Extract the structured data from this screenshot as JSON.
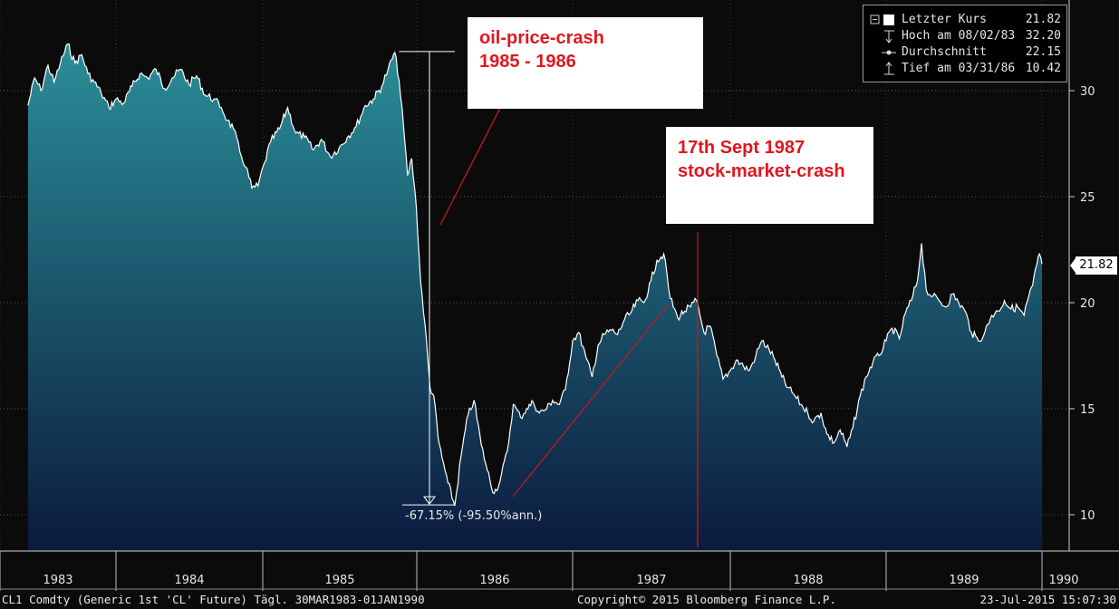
{
  "chart_data": {
    "type": "area",
    "ticker": "CL1 Comdty (Generic 1st 'CL' Future)",
    "x_tick_labels": [
      "1983",
      "1984",
      "1985",
      "1986",
      "1987",
      "1988",
      "1989",
      "1990"
    ],
    "y_ticks": [
      10,
      15,
      20,
      25,
      30
    ],
    "ylim": [
      8.5,
      32.5
    ],
    "x_range": [
      "1983-03-30",
      "1990-01-01"
    ],
    "grid": true,
    "legend_position": "top-right",
    "legend": [
      {
        "label": "Letzter Kurs",
        "value": "21.82",
        "symbol": "square"
      },
      {
        "label": "Hoch am 08/02/83",
        "value": "32.20",
        "symbol": "high"
      },
      {
        "label": "Durchschnitt",
        "value": "22.15",
        "symbol": "avg"
      },
      {
        "label": "Tief am 03/31/86",
        "value": "10.42",
        "symbol": "low"
      }
    ],
    "last_value_label": "21.82",
    "drawdown_label": "-67.15% (-95.50%ann.)",
    "annotations": [
      {
        "lines": [
          "oil-price-crash",
          "1985 - 1986"
        ]
      },
      {
        "lines": [
          "17th Sept 1987",
          "stock-market-crash"
        ]
      }
    ],
    "series": [
      {
        "points": [
          [
            "1983-03-30",
            29.3
          ],
          [
            "1983-04-20",
            30.6
          ],
          [
            "1983-05-10",
            30.0
          ],
          [
            "1983-06-01",
            31.2
          ],
          [
            "1983-06-20",
            30.4
          ],
          [
            "1983-07-10",
            31.3
          ],
          [
            "1983-08-02",
            32.2
          ],
          [
            "1983-08-25",
            31.3
          ],
          [
            "1983-09-15",
            31.7
          ],
          [
            "1983-10-05",
            30.8
          ],
          [
            "1983-10-25",
            30.4
          ],
          [
            "1983-11-15",
            29.9
          ],
          [
            "1983-12-10",
            29.2
          ],
          [
            "1984-01-01",
            29.6
          ],
          [
            "1984-01-20",
            29.4
          ],
          [
            "1984-02-10",
            30.2
          ],
          [
            "1984-03-01",
            30.8
          ],
          [
            "1984-03-20",
            30.6
          ],
          [
            "1984-04-10",
            31.0
          ],
          [
            "1984-05-01",
            30.1
          ],
          [
            "1984-05-20",
            30.6
          ],
          [
            "1984-06-10",
            31.0
          ],
          [
            "1984-07-01",
            30.3
          ],
          [
            "1984-07-20",
            30.7
          ],
          [
            "1984-08-10",
            29.8
          ],
          [
            "1984-09-01",
            29.6
          ],
          [
            "1984-09-20",
            29.2
          ],
          [
            "1984-10-05",
            28.6
          ],
          [
            "1984-10-20",
            28.2
          ],
          [
            "1984-11-05",
            27.1
          ],
          [
            "1984-11-20",
            26.4
          ],
          [
            "1984-12-05",
            25.4
          ],
          [
            "1984-12-20",
            25.5
          ],
          [
            "1985-01-05",
            26.6
          ],
          [
            "1985-01-20",
            27.6
          ],
          [
            "1985-02-10",
            28.2
          ],
          [
            "1985-03-01",
            29.2
          ],
          [
            "1985-03-20",
            28.0
          ],
          [
            "1985-04-10",
            27.8
          ],
          [
            "1985-05-01",
            27.2
          ],
          [
            "1985-05-20",
            27.7
          ],
          [
            "1985-06-10",
            26.9
          ],
          [
            "1985-07-01",
            27.3
          ],
          [
            "1985-07-20",
            27.8
          ],
          [
            "1985-08-10",
            28.3
          ],
          [
            "1985-09-01",
            29.3
          ],
          [
            "1985-09-20",
            29.6
          ],
          [
            "1985-10-10",
            30.2
          ],
          [
            "1985-10-25",
            31.0
          ],
          [
            "1985-11-10",
            31.8
          ],
          [
            "1985-11-20",
            30.5
          ],
          [
            "1985-12-01",
            28.2
          ],
          [
            "1985-12-10",
            26.0
          ],
          [
            "1985-12-20",
            26.8
          ],
          [
            "1985-12-31",
            24.5
          ],
          [
            "1986-01-10",
            21.0
          ],
          [
            "1986-01-20",
            19.0
          ],
          [
            "1986-02-01",
            16.0
          ],
          [
            "1986-02-10",
            15.6
          ],
          [
            "1986-02-20",
            13.6
          ],
          [
            "1986-03-01",
            12.7
          ],
          [
            "1986-03-15",
            11.5
          ],
          [
            "1986-03-31",
            10.42
          ],
          [
            "1986-04-15",
            12.8
          ],
          [
            "1986-05-01",
            14.7
          ],
          [
            "1986-05-15",
            15.4
          ],
          [
            "1986-06-01",
            13.3
          ],
          [
            "1986-06-15",
            12.1
          ],
          [
            "1986-07-01",
            11.0
          ],
          [
            "1986-07-15",
            11.6
          ],
          [
            "1986-08-01",
            13.0
          ],
          [
            "1986-08-15",
            15.2
          ],
          [
            "1986-09-01",
            14.6
          ],
          [
            "1986-09-15",
            15.0
          ],
          [
            "1986-10-01",
            15.3
          ],
          [
            "1986-10-15",
            14.8
          ],
          [
            "1986-11-01",
            15.0
          ],
          [
            "1986-11-15",
            15.4
          ],
          [
            "1986-12-01",
            15.2
          ],
          [
            "1986-12-15",
            15.9
          ],
          [
            "1987-01-01",
            18.2
          ],
          [
            "1987-01-15",
            18.6
          ],
          [
            "1987-02-01",
            17.4
          ],
          [
            "1987-02-15",
            16.5
          ],
          [
            "1987-03-01",
            18.0
          ],
          [
            "1987-03-15",
            18.5
          ],
          [
            "1987-04-01",
            18.7
          ],
          [
            "1987-04-15",
            18.5
          ],
          [
            "1987-05-01",
            19.2
          ],
          [
            "1987-05-15",
            19.5
          ],
          [
            "1987-06-01",
            20.1
          ],
          [
            "1987-06-15",
            20.0
          ],
          [
            "1987-07-01",
            21.0
          ],
          [
            "1987-07-15",
            22.0
          ],
          [
            "1987-07-31",
            22.3
          ],
          [
            "1987-08-15",
            20.2
          ],
          [
            "1987-09-01",
            19.3
          ],
          [
            "1987-09-17",
            19.6
          ],
          [
            "1987-10-01",
            19.8
          ],
          [
            "1987-10-15",
            20.1
          ],
          [
            "1987-11-01",
            18.6
          ],
          [
            "1987-11-15",
            18.9
          ],
          [
            "1987-12-01",
            17.5
          ],
          [
            "1987-12-15",
            16.4
          ],
          [
            "1988-01-01",
            16.8
          ],
          [
            "1988-01-15",
            17.3
          ],
          [
            "1988-02-01",
            17.0
          ],
          [
            "1988-02-15",
            16.8
          ],
          [
            "1988-03-01",
            17.5
          ],
          [
            "1988-03-15",
            18.2
          ],
          [
            "1988-04-01",
            17.8
          ],
          [
            "1988-04-15",
            17.3
          ],
          [
            "1988-05-01",
            16.5
          ],
          [
            "1988-05-15",
            16.0
          ],
          [
            "1988-06-01",
            15.6
          ],
          [
            "1988-06-15",
            15.2
          ],
          [
            "1988-07-01",
            14.8
          ],
          [
            "1988-07-15",
            14.4
          ],
          [
            "1988-08-01",
            14.8
          ],
          [
            "1988-08-15",
            13.8
          ],
          [
            "1988-09-01",
            13.4
          ],
          [
            "1988-09-15",
            14.0
          ],
          [
            "1988-10-01",
            13.2
          ],
          [
            "1988-10-15",
            14.1
          ],
          [
            "1988-11-01",
            15.6
          ],
          [
            "1988-11-15",
            16.5
          ],
          [
            "1988-12-01",
            17.2
          ],
          [
            "1988-12-15",
            17.5
          ],
          [
            "1989-01-01",
            18.2
          ],
          [
            "1989-01-15",
            18.8
          ],
          [
            "1989-02-01",
            18.3
          ],
          [
            "1989-02-15",
            19.5
          ],
          [
            "1989-03-01",
            20.1
          ],
          [
            "1989-03-15",
            21.0
          ],
          [
            "1989-03-25",
            22.8
          ],
          [
            "1989-04-05",
            20.6
          ],
          [
            "1989-04-20",
            20.3
          ],
          [
            "1989-05-05",
            20.1
          ],
          [
            "1989-05-20",
            19.8
          ],
          [
            "1989-06-05",
            20.4
          ],
          [
            "1989-06-20",
            20.0
          ],
          [
            "1989-07-05",
            19.6
          ],
          [
            "1989-07-20",
            18.6
          ],
          [
            "1989-08-05",
            18.2
          ],
          [
            "1989-08-20",
            18.6
          ],
          [
            "1989-09-05",
            19.4
          ],
          [
            "1989-09-20",
            19.6
          ],
          [
            "1989-10-05",
            20.1
          ],
          [
            "1989-10-20",
            19.7
          ],
          [
            "1989-11-05",
            19.8
          ],
          [
            "1989-11-20",
            19.4
          ],
          [
            "1989-12-01",
            20.3
          ],
          [
            "1989-12-10",
            20.8
          ],
          [
            "1989-12-20",
            21.8
          ],
          [
            "1989-12-26",
            22.3
          ],
          [
            "1990-01-01",
            21.82
          ]
        ]
      }
    ]
  },
  "footer": {
    "left": "CL1 Comdty (Generic 1st 'CL' Future)  Tägl. 30MAR1983-01JAN1990",
    "center": "Copyright© 2015 Bloomberg Finance L.P.",
    "right": "23-Jul-2015 15:07:30"
  },
  "colors": {
    "fill_top": "#2a8e98",
    "fill_bottom": "#0b1a3e",
    "line": "#ffffff",
    "annotation_text": "#e0171f",
    "annotation_line": "#c01a20",
    "background": "#0b0b0b"
  }
}
